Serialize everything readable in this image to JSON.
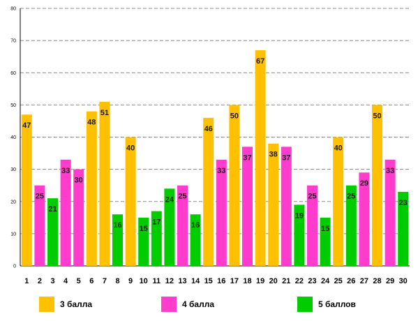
{
  "colors": {
    "orange": "#FFC000",
    "pink": "#FF3CCB",
    "green": "#00CC00",
    "grid": "#8A8A8A",
    "axis": "#000000"
  },
  "legend": [
    {
      "label": "3 балла",
      "color": "#FFC000"
    },
    {
      "label": "4 балла",
      "color": "#FF3CCB"
    },
    {
      "label": "5 баллов",
      "color": "#00CC00"
    }
  ],
  "chart_data": {
    "type": "bar",
    "title": "",
    "xlabel": "",
    "ylabel": "",
    "ylim": [
      0,
      80
    ],
    "yticks": [
      0,
      10,
      20,
      30,
      40,
      50,
      60,
      70,
      80
    ],
    "grid": true,
    "legend_position": "bottom",
    "categories": [
      "1",
      "2",
      "3",
      "4",
      "5",
      "6",
      "7",
      "8",
      "9",
      "10",
      "11",
      "12",
      "13",
      "14",
      "15",
      "16",
      "17",
      "18",
      "19",
      "20",
      "21",
      "22",
      "23",
      "24",
      "25",
      "26",
      "27",
      "28",
      "29",
      "30"
    ],
    "values": [
      47,
      25,
      21,
      33,
      30,
      48,
      51,
      16,
      40,
      15,
      17,
      24,
      25,
      16,
      46,
      33,
      50,
      37,
      67,
      38,
      37,
      19,
      25,
      15,
      40,
      25,
      29,
      50,
      33,
      23
    ],
    "bar_colors": [
      "orange",
      "pink",
      "green",
      "pink",
      "pink",
      "orange",
      "orange",
      "green",
      "orange",
      "green",
      "green",
      "green",
      "pink",
      "green",
      "orange",
      "pink",
      "orange",
      "pink",
      "orange",
      "orange",
      "pink",
      "green",
      "pink",
      "green",
      "orange",
      "green",
      "pink",
      "orange",
      "pink",
      "green"
    ],
    "data_labels": [
      "47",
      "25",
      "21",
      "33",
      "30",
      "48",
      "51",
      "16",
      "40",
      "15",
      "17",
      "24",
      "25",
      "16",
      "46",
      "33",
      "50",
      "37",
      "67",
      "38",
      "37",
      "19",
      "25",
      "15",
      "40",
      "25",
      "29",
      "50",
      "33",
      "23"
    ]
  }
}
